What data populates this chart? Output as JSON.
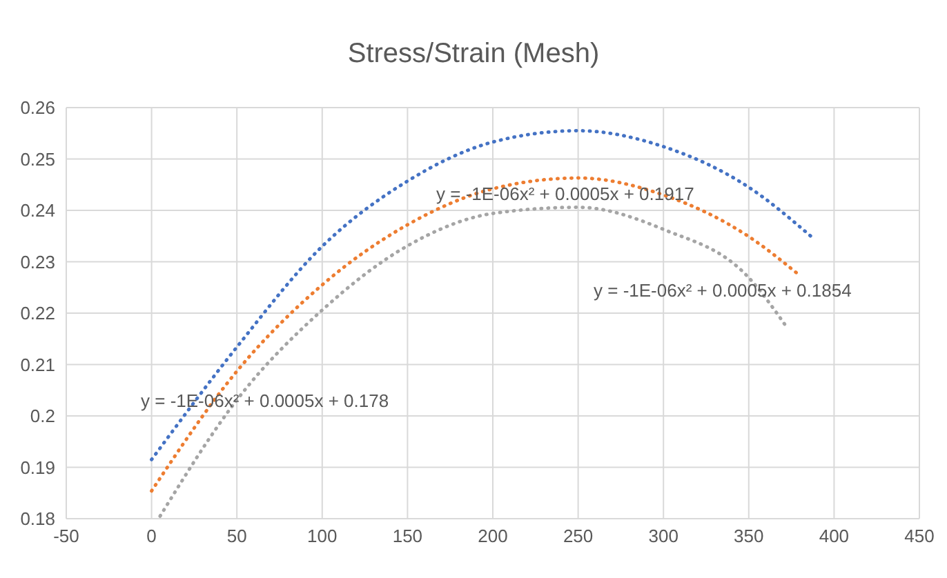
{
  "chart_data": {
    "type": "line",
    "title": "Stress/Strain (Mesh)",
    "series": [
      {
        "color": "#4472c4",
        "x": [
          0,
          50,
          100,
          150,
          200,
          250,
          300,
          350,
          387
        ],
        "values": [
          0.1915,
          0.2134,
          0.233,
          0.2457,
          0.2533,
          0.2555,
          0.2524,
          0.2445,
          0.2348
        ]
      },
      {
        "color": "#ed7d31",
        "x": [
          0,
          50,
          100,
          150,
          200,
          250,
          300,
          350,
          380
        ],
        "values": [
          0.1854,
          0.2087,
          0.2255,
          0.2372,
          0.2442,
          0.2463,
          0.243,
          0.2349,
          0.2273
        ]
      },
      {
        "color": "#a5a5a5",
        "x": [
          5,
          50,
          100,
          150,
          200,
          250,
          300,
          350,
          372
        ],
        "values": [
          0.1805,
          0.2031,
          0.2206,
          0.2331,
          0.2394,
          0.2406,
          0.2363,
          0.2269,
          0.2174
        ]
      }
    ],
    "annotations": [
      "y = -1E-06x² + 0.0005x + 0.178",
      "y = -1E-06x² + 0.0005x + 0.1917",
      "y = -1E-06x² + 0.0005x + 0.1854"
    ],
    "xlim": [
      -50,
      450
    ],
    "xticks": [
      -50,
      0,
      50,
      100,
      150,
      200,
      250,
      300,
      350,
      400,
      450
    ],
    "ylim": [
      0.18,
      0.26
    ],
    "yticks": [
      0.18,
      0.19,
      0.2,
      0.21,
      0.22,
      0.23,
      0.24,
      0.25,
      0.26
    ],
    "grid": true,
    "marker": "none",
    "line_style": "dotted",
    "legend": false
  }
}
